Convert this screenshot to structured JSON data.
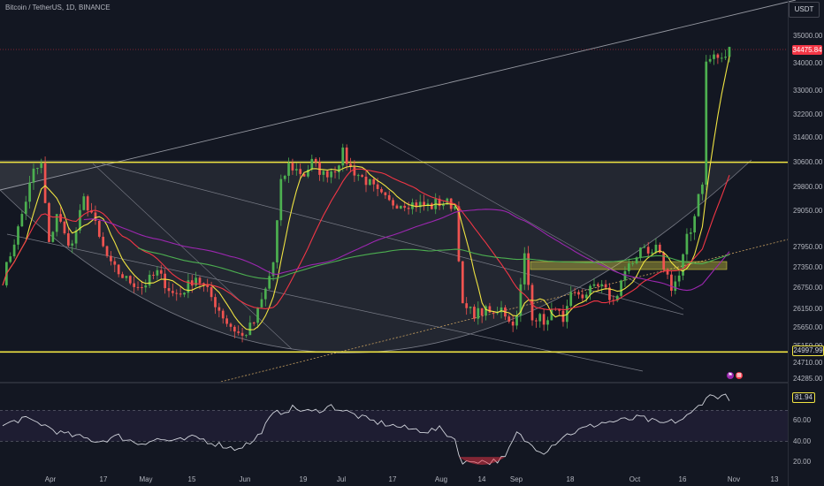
{
  "header": {
    "symbol_title": "Bitcoin / TetherUS, 1D, BINANCE",
    "currency": "USDT"
  },
  "price_axis": {
    "labels": [
      "35000.00",
      "34000.00",
      "33000.00",
      "32200.00",
      "31400.00",
      "30600.00",
      "29800.00",
      "29050.00",
      "27950.00",
      "27350.00",
      "26750.00",
      "26150.00",
      "25650.00",
      "25150.00",
      "24710.00",
      "24285.00"
    ],
    "current_price_tag": "34475.84",
    "level_tag": "24997.99"
  },
  "rsi_axis": {
    "labels": [
      "60.00",
      "40.00",
      "20.00"
    ],
    "value_tag": "81.94"
  },
  "time_axis": {
    "labels": [
      "Apr",
      "17",
      "May",
      "15",
      "Jun",
      "19",
      "Jul",
      "17",
      "Aug",
      "14",
      "Sep",
      "18",
      "Oct",
      "16",
      "Nov",
      "13"
    ]
  },
  "colors": {
    "background": "#131722",
    "bull": "#26a69a",
    "bull_candle": "#4caf50",
    "bear": "#ef5350",
    "yellow": "#f0e442",
    "red_ma": "#f23645",
    "purple_ma": "#9c27b0",
    "green_ma": "#4caf50",
    "rsi_line": "#d1d4dc"
  },
  "event_icons": [
    "flag-icon",
    "calendar-icon"
  ],
  "chart_data": {
    "type": "candlestick",
    "symbol": "Bitcoin / TetherUS",
    "interval": "1D",
    "exchange": "BINANCE",
    "ylim": [
      24285,
      35800
    ],
    "y_scale": "log",
    "horizontal_levels": [
      30600,
      24997.99
    ],
    "price_walk": [
      [
        0,
        27000
      ],
      [
        4,
        28500
      ],
      [
        8,
        30300
      ],
      [
        10,
        30500
      ],
      [
        12,
        28000
      ],
      [
        14,
        29000
      ],
      [
        16,
        28300
      ],
      [
        18,
        28000
      ],
      [
        21,
        29400
      ],
      [
        23,
        29000
      ],
      [
        25,
        28200
      ],
      [
        28,
        27400
      ],
      [
        32,
        27000
      ],
      [
        36,
        26800
      ],
      [
        40,
        27200
      ],
      [
        44,
        26600
      ],
      [
        46,
        26600
      ],
      [
        50,
        27100
      ],
      [
        54,
        26500
      ],
      [
        58,
        25800
      ],
      [
        62,
        25400
      ],
      [
        65,
        25800
      ],
      [
        68,
        26700
      ],
      [
        70,
        27500
      ],
      [
        72,
        29900
      ],
      [
        74,
        30500
      ],
      [
        78,
        30200
      ],
      [
        80,
        30600
      ],
      [
        83,
        30200
      ],
      [
        86,
        30400
      ],
      [
        88,
        30900
      ],
      [
        90,
        30400
      ],
      [
        92,
        30200
      ],
      [
        95,
        29900
      ],
      [
        97,
        29600
      ],
      [
        100,
        29300
      ],
      [
        104,
        29300
      ],
      [
        108,
        29250
      ],
      [
        111,
        29200
      ],
      [
        112,
        29300
      ],
      [
        115,
        29300
      ],
      [
        117,
        29200
      ],
      [
        119,
        26200
      ],
      [
        122,
        26050
      ],
      [
        125,
        26100
      ],
      [
        127,
        26000
      ],
      [
        129,
        26300
      ],
      [
        131,
        25800
      ],
      [
        133,
        25900
      ],
      [
        135,
        27700
      ],
      [
        137,
        26000
      ],
      [
        139,
        25900
      ],
      [
        141,
        25800
      ],
      [
        143,
        26300
      ],
      [
        145,
        25700
      ],
      [
        147,
        26500
      ],
      [
        149,
        26600
      ],
      [
        151,
        26500
      ],
      [
        153,
        26900
      ],
      [
        155,
        26900
      ],
      [
        157,
        26400
      ],
      [
        159,
        26500
      ],
      [
        161,
        27300
      ],
      [
        163,
        27500
      ],
      [
        165,
        28000
      ],
      [
        167,
        27600
      ],
      [
        169,
        27900
      ],
      [
        171,
        27400
      ],
      [
        173,
        26800
      ],
      [
        175,
        27100
      ],
      [
        177,
        28200
      ],
      [
        178,
        28400
      ],
      [
        180,
        29600
      ],
      [
        181,
        30000
      ],
      [
        182,
        34000
      ],
      [
        184,
        34300
      ],
      [
        186,
        34100
      ],
      [
        188,
        34500
      ]
    ],
    "rsi_walk": [
      [
        0,
        55
      ],
      [
        5,
        62
      ],
      [
        10,
        57
      ],
      [
        15,
        48
      ],
      [
        20,
        44
      ],
      [
        25,
        40
      ],
      [
        30,
        45
      ],
      [
        35,
        38
      ],
      [
        40,
        42
      ],
      [
        45,
        40
      ],
      [
        50,
        44
      ],
      [
        55,
        38
      ],
      [
        60,
        33
      ],
      [
        65,
        40
      ],
      [
        70,
        66
      ],
      [
        75,
        72
      ],
      [
        80,
        68
      ],
      [
        85,
        74
      ],
      [
        90,
        67
      ],
      [
        95,
        60
      ],
      [
        100,
        56
      ],
      [
        105,
        52
      ],
      [
        110,
        50
      ],
      [
        113,
        52
      ],
      [
        117,
        42
      ],
      [
        119,
        18
      ],
      [
        122,
        22
      ],
      [
        126,
        20
      ],
      [
        130,
        24
      ],
      [
        133,
        48
      ],
      [
        136,
        38
      ],
      [
        140,
        30
      ],
      [
        145,
        45
      ],
      [
        150,
        52
      ],
      [
        155,
        58
      ],
      [
        160,
        60
      ],
      [
        165,
        63
      ],
      [
        170,
        57
      ],
      [
        175,
        60
      ],
      [
        178,
        66
      ],
      [
        181,
        78
      ],
      [
        182,
        83
      ],
      [
        186,
        84
      ],
      [
        188,
        82
      ]
    ],
    "rsi_band": [
      40,
      70
    ],
    "moving_averages": [
      {
        "color": "#f0e442"
      },
      {
        "color": "#f23645"
      },
      {
        "color": "#9c27b0"
      },
      {
        "color": "#4caf50"
      }
    ],
    "time_labels": [
      "Apr",
      "17",
      "May",
      "15",
      "Jun",
      "19",
      "Jul",
      "17",
      "Aug",
      "14",
      "Sep",
      "18",
      "Oct",
      "16",
      "Nov",
      "13"
    ]
  }
}
